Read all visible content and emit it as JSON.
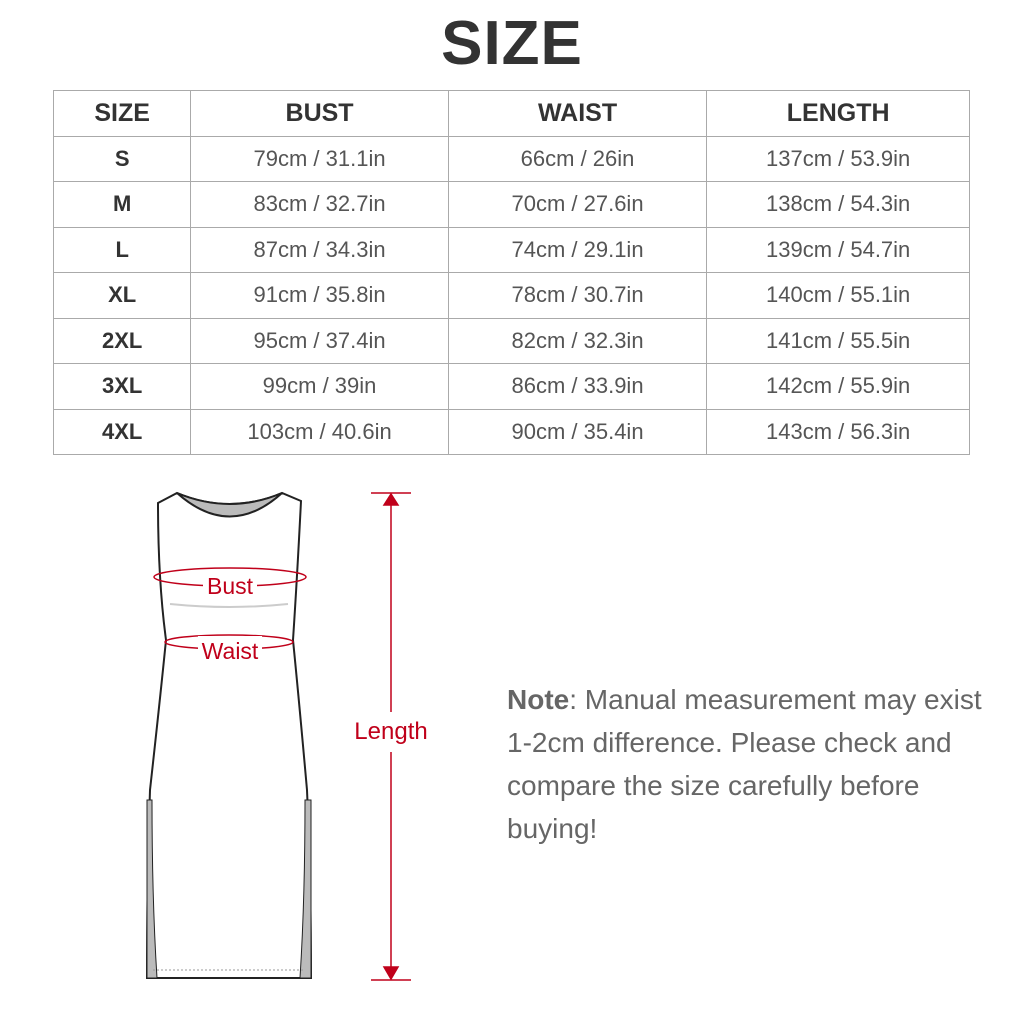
{
  "title": "SIZE",
  "table": {
    "headers": [
      "SIZE",
      "BUST",
      "WAIST",
      "LENGTH"
    ],
    "rows": [
      [
        "S",
        "79cm / 31.1in",
        "66cm / 26in",
        "137cm / 53.9in"
      ],
      [
        "M",
        "83cm / 32.7in",
        "70cm / 27.6in",
        "138cm / 54.3in"
      ],
      [
        "L",
        "87cm / 34.3in",
        "74cm / 29.1in",
        "139cm / 54.7in"
      ],
      [
        "XL",
        "91cm / 35.8in",
        "78cm / 30.7in",
        "140cm / 55.1in"
      ],
      [
        "2XL",
        "95cm / 37.4in",
        "82cm / 32.3in",
        "141cm / 55.5in"
      ],
      [
        "3XL",
        "99cm / 39in",
        "86cm / 33.9in",
        "142cm / 55.9in"
      ],
      [
        "4XL",
        "103cm / 40.6in",
        "90cm / 35.4in",
        "143cm / 56.3in"
      ]
    ]
  },
  "diagram": {
    "bust_label": "Bust",
    "waist_label": "Waist",
    "length_label": "Length",
    "accent_color": "#c0001a"
  },
  "note": {
    "label": "Note",
    "text": ": Manual measurement may exist 1-2cm difference. Please check and compare the size carefully before buying!"
  }
}
